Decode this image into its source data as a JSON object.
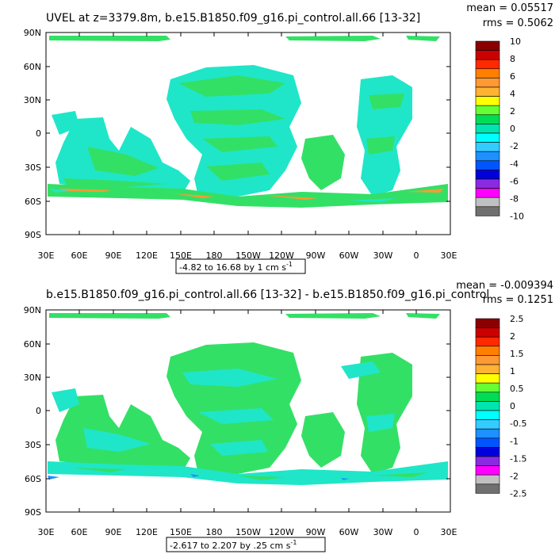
{
  "top": {
    "title": "UVEL at z=3379.8m, b.e15.B1850.f09_g16.pi_control.all.66  [13-32]",
    "mean": "mean = 0.05517",
    "rms": "rms = 0.5062",
    "range": "-4.82 to 16.68 by 1 cm s",
    "range_sup": "-1",
    "colorbar_labels": [
      "10",
      "8",
      "6",
      "4",
      "2",
      "0",
      "-2",
      "-4",
      "-6",
      "-8",
      "-10"
    ]
  },
  "bottom": {
    "title": "b.e15.B1850.f09_g16.pi_control.all.66  [13-32]  -  b.e15.B1850.f09_g16.pi_control",
    "mean": "mean = -0.009394",
    "rms": "rms = 0.1251",
    "range": "-2.617 to 2.207 by .25 cm s",
    "range_sup": "-1",
    "colorbar_labels": [
      "2.5",
      "2",
      "1.5",
      "1",
      "0.5",
      "0",
      "-0.5",
      "-1",
      "-1.5",
      "-2",
      "-2.5"
    ]
  },
  "lat_ticks": [
    "90N",
    "60N",
    "30N",
    "0",
    "30S",
    "60S",
    "90S"
  ],
  "lon_ticks": [
    "30E",
    "60E",
    "90E",
    "120E",
    "150E",
    "180",
    "150W",
    "120W",
    "90W",
    "60W",
    "30W",
    "0",
    "30E"
  ],
  "colors": {
    "colorbar": [
      "#8b0000",
      "#cc0000",
      "#ff2a00",
      "#ff7f00",
      "#ff9933",
      "#ffb233",
      "#ffff00",
      "#66ff33",
      "#00dd55",
      "#00e5b0",
      "#00ffff",
      "#33ccff",
      "#1e90ff",
      "#0055ff",
      "#0000dd",
      "#8a2be2",
      "#ff00ff",
      "#c0c0c0",
      "#707070"
    ],
    "map_green": "#33e066",
    "map_cyan": "#1fe6c8"
  }
}
